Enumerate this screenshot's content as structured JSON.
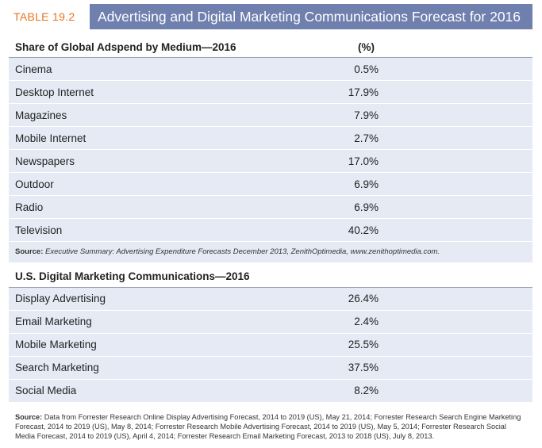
{
  "header": {
    "label": "TABLE 19.2",
    "title": "Advertising and Digital Marketing Communications Forecast for 2016"
  },
  "section1": {
    "heading": "Share of Global Adspend by Medium—2016",
    "column_heading": "(%)",
    "rows": [
      {
        "label": "Cinema",
        "value": "0.5%"
      },
      {
        "label": "Desktop Internet",
        "value": "17.9%"
      },
      {
        "label": "Magazines",
        "value": "7.9%"
      },
      {
        "label": "Mobile Internet",
        "value": "2.7%"
      },
      {
        "label": "Newspapers",
        "value": "17.0%"
      },
      {
        "label": "Outdoor",
        "value": "6.9%"
      },
      {
        "label": "Radio",
        "value": "6.9%"
      },
      {
        "label": "Television",
        "value": "40.2%"
      }
    ],
    "source_label": "Source:",
    "source_text": "Executive Summary: Advertising Expenditure Forecasts December 2013, ZenithOptimedia, www.zenithoptimedia.com."
  },
  "section2": {
    "heading": "U.S. Digital Marketing Communications—2016",
    "rows": [
      {
        "label": "Display Advertising",
        "value": "26.4%"
      },
      {
        "label": "Email Marketing",
        "value": "2.4%"
      },
      {
        "label": "Mobile Marketing",
        "value": "25.5%"
      },
      {
        "label": "Search Marketing",
        "value": "37.5%"
      },
      {
        "label": "Social Media",
        "value": "8.2%"
      }
    ],
    "source_label": "Source:",
    "source_text": "Data from Forrester Research Online Display Advertising Forecast, 2014 to 2019 (US), May 21, 2014; Forrester Research Search Engine Marketing Forecast, 2014 to 2019 (US), May 8, 2014; Forrester Research Mobile Advertising Forecast, 2014 to 2019 (US), May 5, 2014; Forrester Research Social Media Forecast, 2014 to 2019 (US), April 4, 2014; Forrester Research Email Marketing Forecast, 2013 to 2018 (US), July 8, 2013."
  },
  "colors": {
    "title_bar": "#6f7fae",
    "label_accent": "#e8731f",
    "row_fill": "#e6eaf4"
  }
}
